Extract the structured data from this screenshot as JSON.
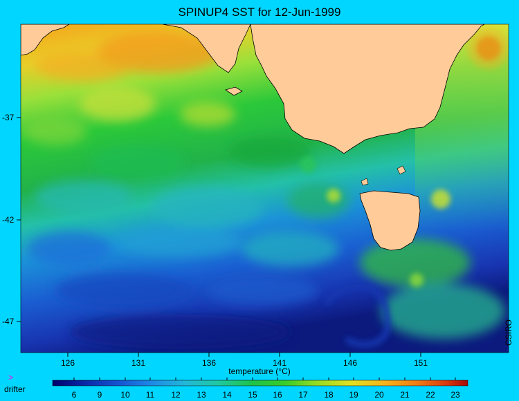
{
  "title": "SPINUP4 SST for 12-Jun-1999",
  "axis": {
    "lon_ticks": [
      "126",
      "131",
      "136",
      "141",
      "146",
      "151"
    ],
    "lat_ticks": [
      "-37",
      "-42",
      "-47"
    ]
  },
  "colorbar": {
    "title": "temperature (°C)",
    "ticks": [
      "6",
      "9",
      "10",
      "11",
      "12",
      "13",
      "14",
      "15",
      "16",
      "17",
      "18",
      "19",
      "20",
      "21",
      "22",
      "23"
    ]
  },
  "credit": "CSIRO",
  "legend": {
    "marker": ">",
    "label": "drifter"
  },
  "colors": {
    "background": "#00d6ff",
    "land": "#ffcc99"
  }
}
